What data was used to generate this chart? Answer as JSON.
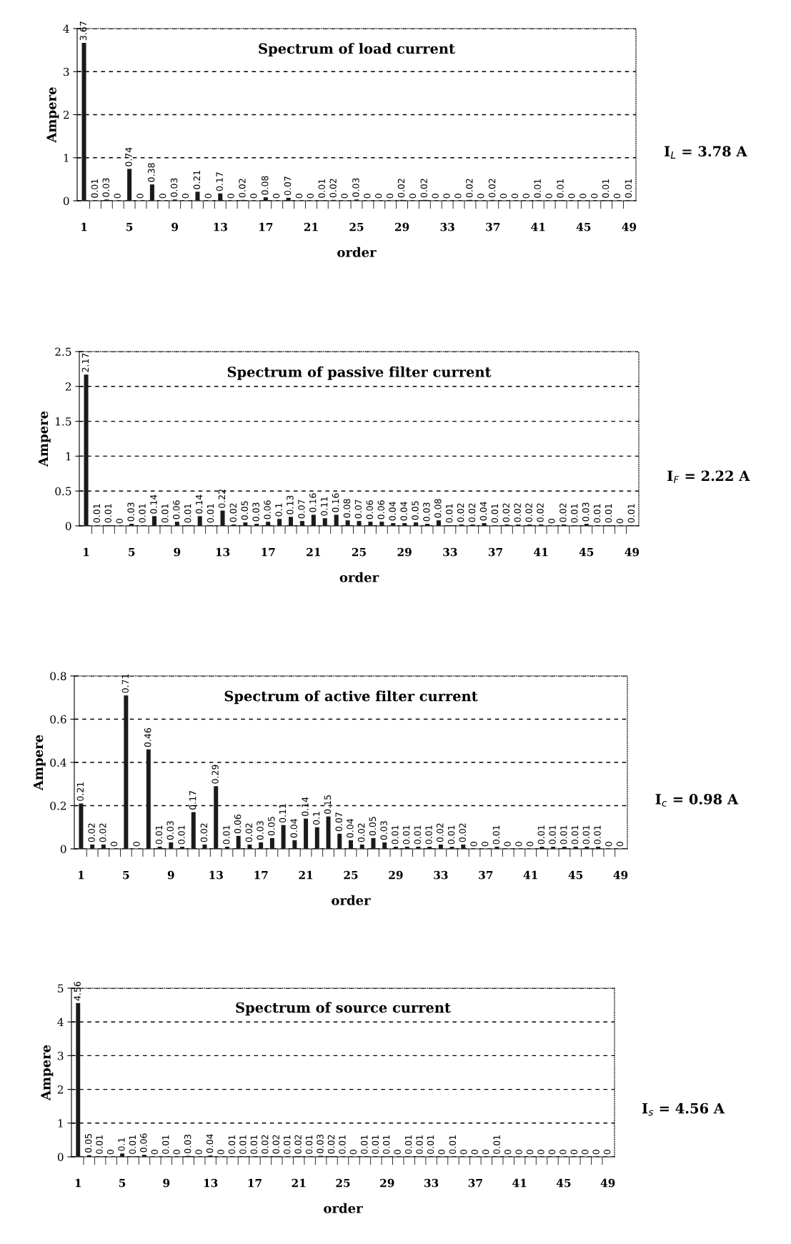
{
  "chart_data": [
    {
      "type": "bar",
      "title": "Spectrum of load current",
      "xlabel": "order",
      "ylabel": "Ampere",
      "color": "#1a1a1a",
      "grid": "y",
      "data_labels": true,
      "ylim": [
        0,
        4
      ],
      "yticks": [
        0,
        1,
        2,
        3,
        4
      ],
      "annotations": [
        "I$_{L}$ = 3.78 A"
      ],
      "categories": [
        "1",
        null,
        null,
        null,
        "5",
        null,
        null,
        null,
        "9",
        null,
        null,
        null,
        "13",
        null,
        null,
        null,
        "17",
        null,
        null,
        null,
        "21",
        null,
        null,
        null,
        "25",
        null,
        null,
        null,
        "29",
        null,
        null,
        null,
        "33",
        null,
        null,
        null,
        "37",
        null,
        null,
        null,
        "41",
        null,
        null,
        null,
        "45",
        null,
        null,
        null,
        "49"
      ],
      "values": [
        3.67,
        0.01,
        0.03,
        0,
        0.74,
        0,
        0.38,
        0,
        0.03,
        0,
        0.21,
        0,
        0.17,
        0,
        0.02,
        0,
        0.08,
        0,
        0.07,
        0,
        0,
        0.01,
        0.02,
        0,
        0.03,
        0,
        0,
        0,
        0.02,
        0,
        0.02,
        0,
        0,
        0,
        0.02,
        0,
        0.02,
        0,
        0,
        0,
        0.01,
        0,
        0.01,
        0,
        0,
        0,
        0.01,
        0,
        0.01
      ]
    },
    {
      "type": "bar",
      "title": "Spectrum of passive filter current",
      "xlabel": "order",
      "ylabel": "Ampere",
      "color": "#1a1a1a",
      "grid": "y",
      "data_labels": true,
      "ylim": [
        0,
        2.5
      ],
      "yticks": [
        0,
        0.5,
        1,
        1.5,
        2,
        2.5
      ],
      "annotations": [
        "I$_{F}$ = 2.22 A"
      ],
      "categories": [
        "1",
        null,
        null,
        null,
        "5",
        null,
        null,
        null,
        "9",
        null,
        null,
        null,
        "13",
        null,
        null,
        null,
        "17",
        null,
        null,
        null,
        "21",
        null,
        null,
        null,
        "25",
        null,
        null,
        null,
        "29",
        null,
        null,
        null,
        "33",
        null,
        null,
        null,
        "37",
        null,
        null,
        null,
        "41",
        null,
        null,
        null,
        "45",
        null,
        null,
        null,
        "49"
      ],
      "values": [
        2.17,
        0.01,
        0.01,
        0,
        0.03,
        0.01,
        0.14,
        0.01,
        0.06,
        0.01,
        0.14,
        0.01,
        0.22,
        0.02,
        0.05,
        0.03,
        0.06,
        0.1,
        0.13,
        0.07,
        0.16,
        0.11,
        0.16,
        0.08,
        0.07,
        0.06,
        0.06,
        0.04,
        0.04,
        0.05,
        0.03,
        0.08,
        0.01,
        0.02,
        0.02,
        0.04,
        0.01,
        0.02,
        0.02,
        0.02,
        0.02,
        0,
        0.02,
        0.01,
        0.03,
        0.01,
        0.01,
        0,
        0.01
      ]
    },
    {
      "type": "bar",
      "title": "Spectrum of active filter current",
      "xlabel": "order",
      "ylabel": "Ampere",
      "color": "#1a1a1a",
      "grid": "y",
      "data_labels": true,
      "ylim": [
        0,
        0.8
      ],
      "yticks": [
        0,
        0.2,
        0.4,
        0.6,
        0.8
      ],
      "annotations": [
        "I$_{c}$ = 0.98 A"
      ],
      "categories": [
        "1",
        null,
        null,
        null,
        "5",
        null,
        null,
        null,
        "9",
        null,
        null,
        null,
        "13",
        null,
        null,
        null,
        "17",
        null,
        null,
        null,
        "21",
        null,
        null,
        null,
        "25",
        null,
        null,
        null,
        "29",
        null,
        null,
        null,
        "33",
        null,
        null,
        null,
        "37",
        null,
        null,
        null,
        "41",
        null,
        null,
        null,
        "45",
        null,
        null,
        null,
        "49"
      ],
      "values": [
        0.21,
        0.02,
        0.02,
        0,
        0.71,
        0,
        0.46,
        0.01,
        0.03,
        0.01,
        0.17,
        0.02,
        0.29,
        0.01,
        0.06,
        0.02,
        0.03,
        0.05,
        0.11,
        0.04,
        0.14,
        0.1,
        0.15,
        0.07,
        0.04,
        0.02,
        0.05,
        0.03,
        0.01,
        0.01,
        0.01,
        0.01,
        0.02,
        0.01,
        0.02,
        0,
        0,
        0.01,
        0,
        0,
        0,
        0.01,
        0.01,
        0.01,
        0.01,
        0.01,
        0.01,
        0,
        0
      ]
    },
    {
      "type": "bar",
      "title": "Spectrum of source current",
      "xlabel": "order",
      "ylabel": "Ampere",
      "color": "#1a1a1a",
      "grid": "y",
      "data_labels": true,
      "ylim": [
        0,
        5
      ],
      "yticks": [
        0,
        1,
        2,
        3,
        4,
        5
      ],
      "annotations": [
        "I$_{s}$ = 4.56 A"
      ],
      "categories": [
        "1",
        null,
        null,
        null,
        "5",
        null,
        null,
        null,
        "9",
        null,
        null,
        null,
        "13",
        null,
        null,
        null,
        "17",
        null,
        null,
        null,
        "21",
        null,
        null,
        null,
        "25",
        null,
        null,
        null,
        "29",
        null,
        null,
        null,
        "33",
        null,
        null,
        null,
        "37",
        null,
        null,
        null,
        "41",
        null,
        null,
        null,
        "45",
        null,
        null,
        null,
        "49"
      ],
      "values": [
        4.56,
        0.05,
        0.01,
        0,
        0.1,
        0.01,
        0.06,
        0,
        0.01,
        0,
        0.03,
        0,
        0.04,
        0,
        0.01,
        0.01,
        0.01,
        0.02,
        0.02,
        0.01,
        0.02,
        0.01,
        0.03,
        0.02,
        0.01,
        0,
        0.01,
        0.01,
        0.01,
        0,
        0.01,
        0.01,
        0.01,
        0,
        0.01,
        0,
        0,
        0,
        0.01,
        0,
        0,
        0,
        0,
        0,
        0,
        0,
        0,
        0,
        0
      ]
    }
  ]
}
